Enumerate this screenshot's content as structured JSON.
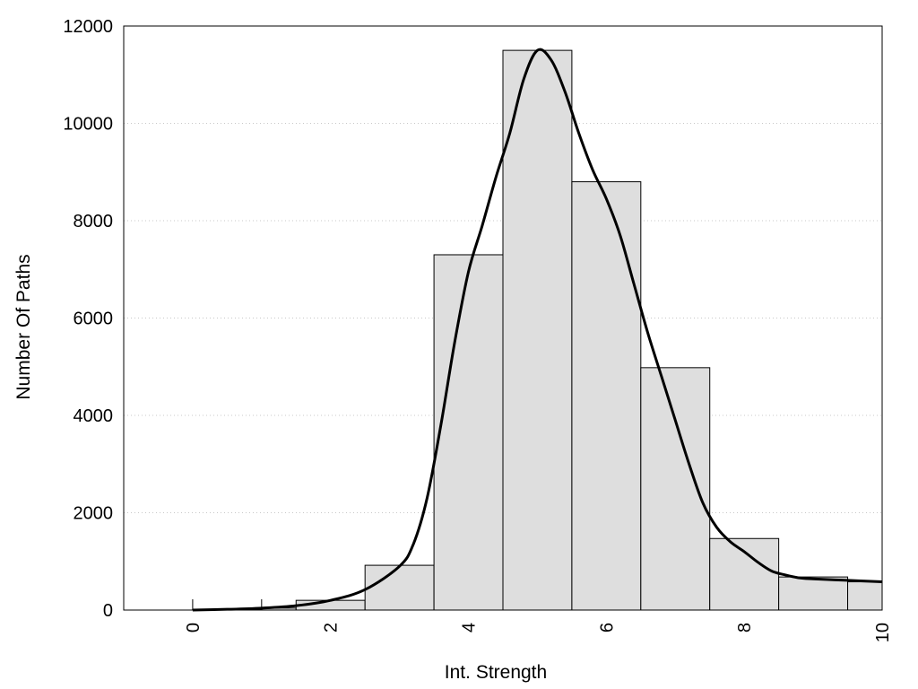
{
  "chart_data": {
    "type": "bar",
    "title": "",
    "xlabel": "Int. Strength",
    "ylabel": "Number Of Paths",
    "xlim": [
      -1,
      10
    ],
    "ylim": [
      0,
      12000
    ],
    "xticks": [
      0,
      2,
      4,
      6,
      8,
      10
    ],
    "yticks": [
      0,
      2000,
      4000,
      6000,
      8000,
      10000,
      12000
    ],
    "grid": "horizontal-dotted",
    "bars": [
      {
        "x0": 0,
        "x1": 1,
        "value": 10
      },
      {
        "x0": 1,
        "x1": 1.5,
        "value": 40
      },
      {
        "x0": 1.5,
        "x1": 2.5,
        "value": 200
      },
      {
        "x0": 2.5,
        "x1": 3.5,
        "value": 920
      },
      {
        "x0": 3.5,
        "x1": 4.5,
        "value": 7300
      },
      {
        "x0": 4.5,
        "x1": 5.5,
        "value": 11500
      },
      {
        "x0": 5.5,
        "x1": 6.5,
        "value": 8800
      },
      {
        "x0": 6.5,
        "x1": 7.5,
        "value": 4980
      },
      {
        "x0": 7.5,
        "x1": 8.5,
        "value": 1470
      },
      {
        "x0": 8.5,
        "x1": 9.5,
        "value": 680
      },
      {
        "x0": 9.5,
        "x1": 10,
        "value": 580
      }
    ],
    "curve": {
      "x": [
        0,
        0.5,
        1,
        1.5,
        2,
        2.5,
        3,
        3.2,
        3.4,
        3.6,
        3.8,
        4,
        4.2,
        4.4,
        4.6,
        4.8,
        5,
        5.2,
        5.4,
        5.6,
        5.8,
        6,
        6.2,
        6.4,
        6.6,
        6.8,
        7,
        7.2,
        7.4,
        7.6,
        7.8,
        8,
        8.2,
        8.4,
        8.6,
        8.8,
        9,
        9.5,
        10
      ],
      "y": [
        0,
        15,
        40,
        90,
        200,
        420,
        900,
        1350,
        2300,
        3800,
        5500,
        6950,
        7900,
        8900,
        9800,
        10900,
        11500,
        11300,
        10650,
        9800,
        9050,
        8450,
        7700,
        6700,
        5700,
        4800,
        3900,
        3000,
        2200,
        1700,
        1400,
        1200,
        980,
        800,
        720,
        660,
        640,
        610,
        580
      ]
    }
  }
}
